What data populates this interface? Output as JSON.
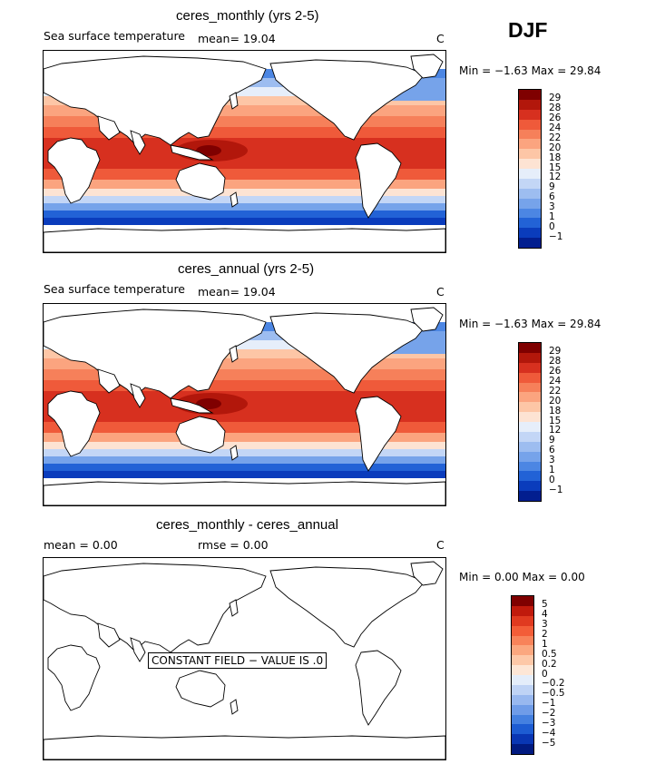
{
  "season": "DJF",
  "panels": [
    {
      "title": "ceres_monthly (yrs 2-5)",
      "left_label": "Sea surface temperature",
      "mean_label": "mean=   19.04",
      "unit": "C",
      "minmax": "Min =   −1.63  Max =   29.84",
      "colorbar_labels": [
        "29",
        "28",
        "26",
        "24",
        "22",
        "20",
        "18",
        "15",
        "12",
        "9",
        "6",
        "3",
        "1",
        "0",
        "−1"
      ],
      "has_field": true
    },
    {
      "title": "ceres_annual (yrs 2-5)",
      "left_label": "Sea surface temperature",
      "mean_label": "mean=   19.04",
      "unit": "C",
      "minmax": "Min =   −1.63  Max =   29.84",
      "colorbar_labels": [
        "29",
        "28",
        "26",
        "24",
        "22",
        "20",
        "18",
        "15",
        "12",
        "9",
        "6",
        "3",
        "1",
        "0",
        "−1"
      ],
      "has_field": true
    },
    {
      "title": "ceres_monthly - ceres_annual",
      "left_label": "mean =     0.00",
      "mean_label": "rmse =     0.00",
      "unit": "C",
      "minmax": "Min =     0.00  Max =     0.00",
      "colorbar_labels": [
        "5",
        "4",
        "3",
        "2",
        "1",
        "0.5",
        "0.2",
        "0",
        "−0.2",
        "−0.5",
        "−1",
        "−2",
        "−3",
        "−4",
        "−5"
      ],
      "has_field": false,
      "message": "CONSTANT FIELD − VALUE IS .0"
    }
  ],
  "colors": {
    "sst_scale": [
      "#7f0000",
      "#b2170b",
      "#d7301f",
      "#ef5a3a",
      "#f6805a",
      "#fba47f",
      "#fdc6a6",
      "#fde3d3",
      "#e6eefa",
      "#c3d6f6",
      "#9dbdf0",
      "#76a3ea",
      "#4c86e3",
      "#2262d6",
      "#0a3cbc",
      "#021e8f"
    ],
    "diff_scale": [
      "#7f0000",
      "#c01a0c",
      "#e03a20",
      "#f35d38",
      "#f8835a",
      "#fba77f",
      "#fdc8a8",
      "#fde6d6",
      "#e4edfa",
      "#bfd3f5",
      "#98b8ef",
      "#6f9ce8",
      "#4480e0",
      "#1d5cd2",
      "#0936b3",
      "#011a80"
    ]
  }
}
